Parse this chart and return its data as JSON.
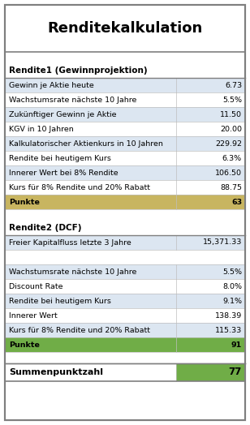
{
  "title": "Renditekalkulation",
  "section1_header": "Rendite1 (Gewinnprojektion)",
  "section1_rows": [
    [
      "Gewinn je Aktie heute",
      "6.73"
    ],
    [
      "Wachstumsrate nächste 10 Jahre",
      "5.5%"
    ],
    [
      "Zukünftiger Gewinn je Aktie",
      "11.50"
    ],
    [
      "KGV in 10 Jahren",
      "20.00"
    ],
    [
      "Kalkulatorischer Aktienkurs in 10 Jahren",
      "229.92"
    ],
    [
      "Rendite bei heutigem Kurs",
      "6.3%"
    ],
    [
      "Innerer Wert bei 8% Rendite",
      "106.50"
    ],
    [
      "Kurs für 8% Rendite und 20% Rabatt",
      "88.75"
    ],
    [
      "Punkte",
      "63"
    ]
  ],
  "section2_header": "Rendite2 (DCF)",
  "section2_rows": [
    [
      "Freier Kapitalfluss letzte 3 Jahre",
      "15,371.33"
    ],
    [
      "",
      ""
    ],
    [
      "Wachstumsrate nächste 10 Jahre",
      "5.5%"
    ],
    [
      "Discount Rate",
      "8.0%"
    ],
    [
      "Rendite bei heutigem Kurs",
      "9.1%"
    ],
    [
      "Innerer Wert",
      "138.39"
    ],
    [
      "Kurs für 8% Rendite und 20% Rabatt",
      "115.33"
    ],
    [
      "Punkte",
      "91"
    ]
  ],
  "summary_label": "Summenpunktzahl",
  "summary_value": "77",
  "color_blue_row": "#dce6f1",
  "color_white_row": "#ffffff",
  "color_punkte1_bg": "#c8b560",
  "color_punkte2_bg": "#70ad47",
  "color_summary_bg": "#70ad47",
  "color_border": "#7f7f7f",
  "color_inner_border": "#bfbfbf",
  "fig_width": 3.08,
  "fig_height": 5.24,
  "dpi": 100
}
